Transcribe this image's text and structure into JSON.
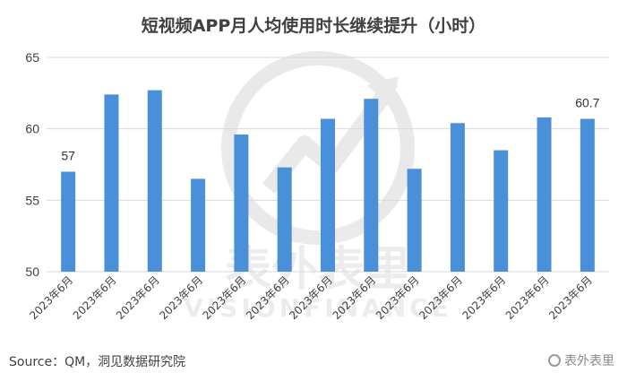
{
  "chart_data": {
    "type": "bar",
    "title": "短视频APP月人均使用时长继续提升（小时）",
    "categories": [
      "2023年6月",
      "2023年6月",
      "2023年6月",
      "2023年6月",
      "2023年6月",
      "2023年6月",
      "2023年6月",
      "2023年6月",
      "2023年6月",
      "2023年6月",
      "2023年6月",
      "2023年6月",
      "2023年6月"
    ],
    "values": [
      57,
      62.4,
      62.7,
      56.5,
      59.6,
      57.3,
      60.7,
      62.1,
      57.2,
      60.4,
      58.5,
      60.8,
      60.7
    ],
    "data_labels": [
      {
        "index": 0,
        "text": "57"
      },
      {
        "index": 12,
        "text": "60.7"
      }
    ],
    "ylim": [
      50,
      65
    ],
    "yticks": [
      50,
      55,
      60,
      65
    ],
    "grid": true,
    "bar_color": "#4A90D9",
    "grid_color": "#d9d9d9",
    "xlabel": "",
    "ylabel": ""
  },
  "source": "Source：QM，洞见数据研究院",
  "watermark": {
    "center_cn": "表外表里",
    "center_en": "VISIONFINANCE",
    "bottom": "表外表里"
  }
}
